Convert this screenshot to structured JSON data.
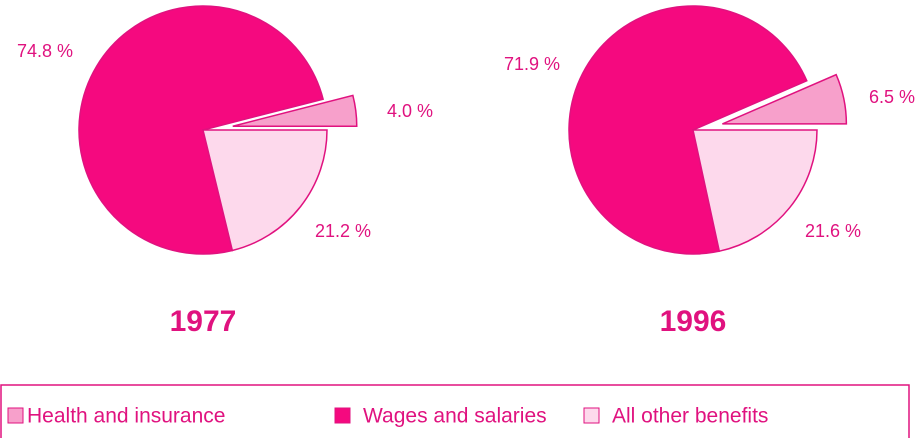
{
  "chart_data": [
    {
      "type": "pie",
      "title": "1977",
      "categories": [
        "Health and insurance",
        "Wages and salaries",
        "All other benefits"
      ],
      "values": [
        4.0,
        74.8,
        21.2
      ],
      "value_labels": [
        "4.0 %",
        "74.8 %",
        "21.2 %"
      ],
      "colors": [
        "#f7a0cb",
        "#f5097f",
        "#fdd9ec"
      ]
    },
    {
      "type": "pie",
      "title": "1996",
      "categories": [
        "Health and insurance",
        "Wages and salaries",
        "All other benefits"
      ],
      "values": [
        6.5,
        71.9,
        21.6
      ],
      "value_labels": [
        "6.5 %",
        "71.9 %",
        "21.6 %"
      ],
      "colors": [
        "#f7a0cb",
        "#f5097f",
        "#fdd9ec"
      ]
    }
  ]
}
